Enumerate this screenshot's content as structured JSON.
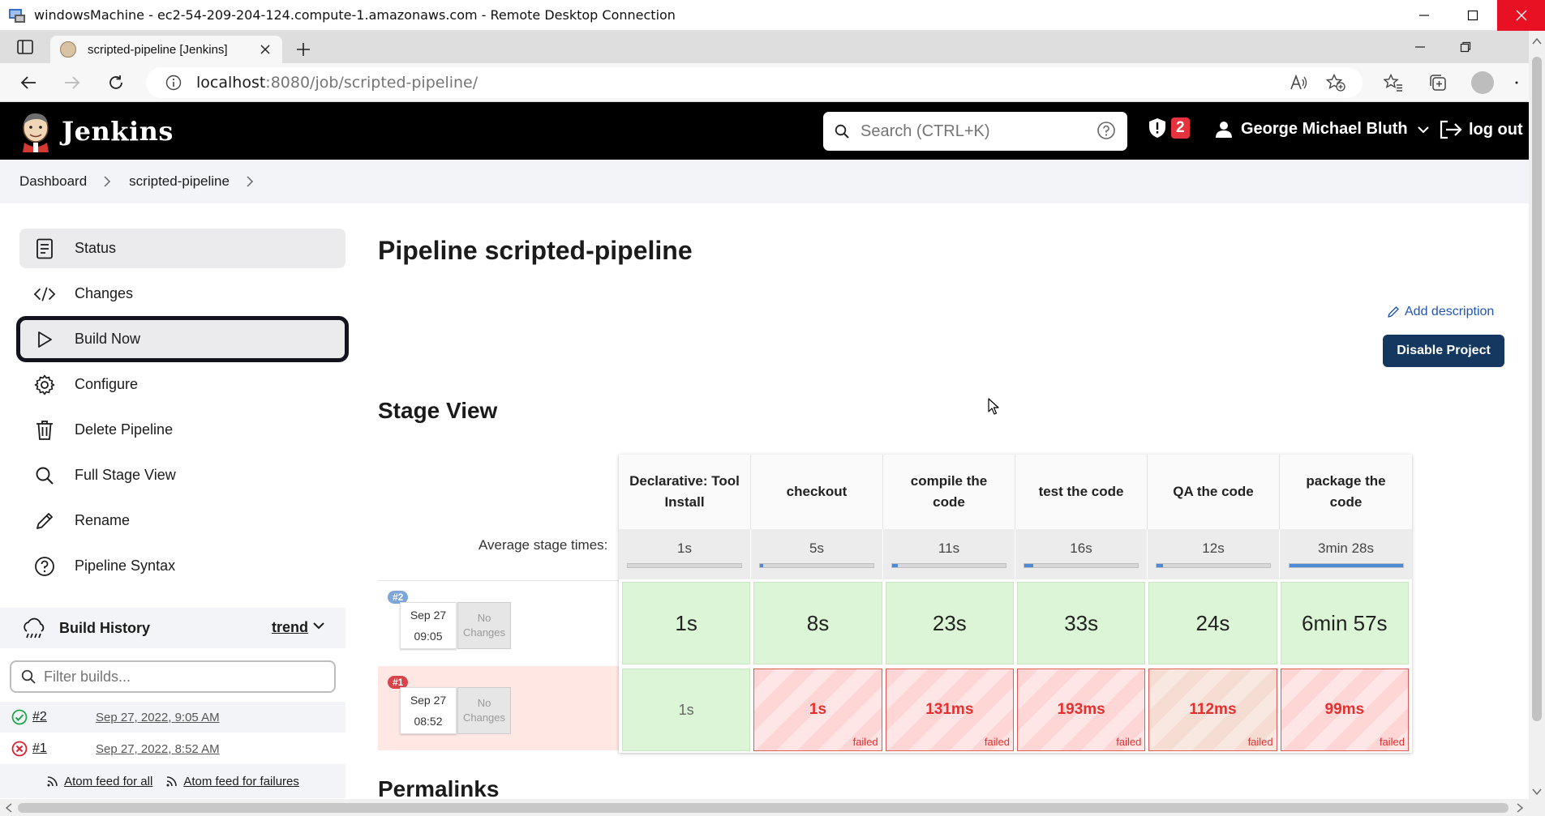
{
  "rdp": {
    "title": "windowsMachine - ec2-54-209-204-124.compute-1.amazonaws.com - Remote Desktop Connection"
  },
  "browser": {
    "tab_title": "scripted-pipeline [Jenkins]",
    "url_host": "localhost",
    "url_rest": ":8080/job/scripted-pipeline/"
  },
  "jenkins": {
    "brand": "Jenkins",
    "search_placeholder": "Search (CTRL+K)",
    "alert_count": "2",
    "user_name": "George Michael Bluth",
    "logout_label": "log out"
  },
  "breadcrumb": [
    "Dashboard",
    "scripted-pipeline"
  ],
  "sidebar": {
    "items": [
      {
        "label": "Status",
        "icon": "document-icon"
      },
      {
        "label": "Changes",
        "icon": "code-icon"
      },
      {
        "label": "Build Now",
        "icon": "play-icon"
      },
      {
        "label": "Configure",
        "icon": "gear-icon"
      },
      {
        "label": "Delete Pipeline",
        "icon": "trash-icon"
      },
      {
        "label": "Full Stage View",
        "icon": "search-icon"
      },
      {
        "label": "Rename",
        "icon": "pencil-icon"
      },
      {
        "label": "Pipeline Syntax",
        "icon": "help-icon"
      }
    ]
  },
  "build_history": {
    "title": "Build History",
    "trend_label": "trend",
    "filter_placeholder": "Filter builds...",
    "builds": [
      {
        "number": "#2",
        "date": "Sep 27, 2022, 9:05 AM",
        "status": "success"
      },
      {
        "number": "#1",
        "date": "Sep 27, 2022, 8:52 AM",
        "status": "failed"
      }
    ],
    "feed_all": "Atom feed for all",
    "feed_failures": "Atom feed for failures"
  },
  "main": {
    "title": "Pipeline scripted-pipeline",
    "add_description": "Add description",
    "disable_project": "Disable Project",
    "stage_view_title": "Stage View",
    "permalinks_title": "Permalinks",
    "avg_label": "Average stage times:"
  },
  "stage_view": {
    "stages": [
      {
        "name": "Declarative: Tool Install",
        "avg": "1s",
        "avg_fraction": 0.0
      },
      {
        "name": "checkout",
        "avg": "5s",
        "avg_fraction": 0.02
      },
      {
        "name": "compile the code",
        "avg": "11s",
        "avg_fraction": 0.05
      },
      {
        "name": "test the code",
        "avg": "16s",
        "avg_fraction": 0.08
      },
      {
        "name": "QA the code",
        "avg": "12s",
        "avg_fraction": 0.06
      },
      {
        "name": "package the code",
        "avg": "3min 28s",
        "avg_fraction": 1.0
      }
    ],
    "builds": [
      {
        "badge": "#2",
        "date": "Sep 27",
        "time": "09:05",
        "changes_1": "No",
        "changes_2": "Changes",
        "cells": [
          "1s",
          "8s",
          "23s",
          "33s",
          "24s",
          "6min 57s"
        ]
      },
      {
        "badge": "#1",
        "date": "Sep 27",
        "time": "08:52",
        "changes_1": "No",
        "changes_2": "Changes",
        "cells": [
          "1s",
          "1s",
          "131ms",
          "193ms",
          "112ms",
          "99ms"
        ],
        "failed_label": "failed"
      }
    ]
  }
}
